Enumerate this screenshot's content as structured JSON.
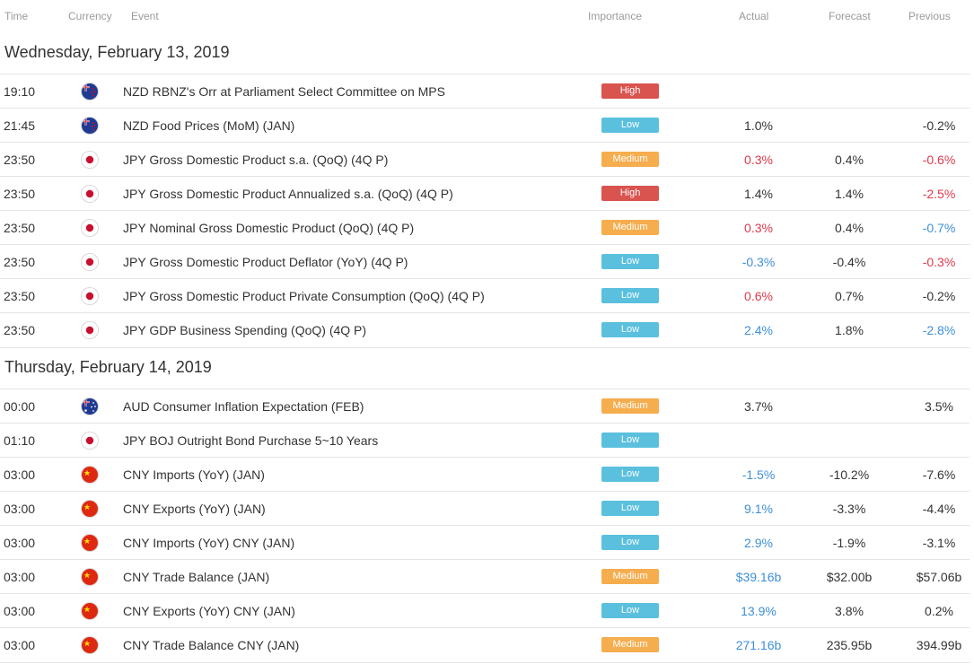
{
  "colors": {
    "high": "#d9534f",
    "medium": "#f5ad4e",
    "low": "#5bc0de",
    "positive": "#3e8fd8",
    "negative": "#e0394b"
  },
  "columns": {
    "time": "Time",
    "currency": "Currency",
    "event": "Event",
    "importance": "Importance",
    "actual": "Actual",
    "forecast": "Forecast",
    "previous": "Previous"
  },
  "days": [
    {
      "title": "Wednesday, February 13, 2019",
      "events": [
        {
          "time": "19:10",
          "flag": "nz-flag",
          "event": "NZD RBNZ's Orr at Parliament Select Committee on MPS",
          "importance": "High",
          "level": "high",
          "actual": "",
          "actual_color": "neu",
          "forecast": "",
          "previous": "",
          "previous_color": "neu"
        },
        {
          "time": "21:45",
          "flag": "nz-flag",
          "event": "NZD Food Prices (MoM) (JAN)",
          "importance": "Low",
          "level": "low",
          "actual": "1.0%",
          "actual_color": "neu",
          "forecast": "",
          "previous": "-0.2%",
          "previous_color": "neu"
        },
        {
          "time": "23:50",
          "flag": "jp-flag",
          "event": "JPY Gross Domestic Product s.a. (QoQ) (4Q P)",
          "importance": "Medium",
          "level": "medium",
          "actual": "0.3%",
          "actual_color": "neg",
          "forecast": "0.4%",
          "previous": "-0.6%",
          "previous_color": "neg"
        },
        {
          "time": "23:50",
          "flag": "jp-flag",
          "event": "JPY Gross Domestic Product Annualized s.a. (QoQ) (4Q P)",
          "importance": "High",
          "level": "high",
          "actual": "1.4%",
          "actual_color": "neu",
          "forecast": "1.4%",
          "previous": "-2.5%",
          "previous_color": "neg"
        },
        {
          "time": "23:50",
          "flag": "jp-flag",
          "event": "JPY Nominal Gross Domestic Product (QoQ) (4Q P)",
          "importance": "Medium",
          "level": "medium",
          "actual": "0.3%",
          "actual_color": "neg",
          "forecast": "0.4%",
          "previous": "-0.7%",
          "previous_color": "pos"
        },
        {
          "time": "23:50",
          "flag": "jp-flag",
          "event": "JPY Gross Domestic Product Deflator (YoY) (4Q P)",
          "importance": "Low",
          "level": "low",
          "actual": "-0.3%",
          "actual_color": "pos",
          "forecast": "-0.4%",
          "previous": "-0.3%",
          "previous_color": "neg"
        },
        {
          "time": "23:50",
          "flag": "jp-flag",
          "event": "JPY Gross Domestic Product Private Consumption (QoQ) (4Q P)",
          "importance": "Low",
          "level": "low",
          "actual": "0.6%",
          "actual_color": "neg",
          "forecast": "0.7%",
          "previous": "-0.2%",
          "previous_color": "neu"
        },
        {
          "time": "23:50",
          "flag": "jp-flag",
          "event": "JPY GDP Business Spending (QoQ) (4Q P)",
          "importance": "Low",
          "level": "low",
          "actual": "2.4%",
          "actual_color": "pos",
          "forecast": "1.8%",
          "previous": "-2.8%",
          "previous_color": "pos"
        }
      ]
    },
    {
      "title": "Thursday, February 14, 2019",
      "events": [
        {
          "time": "00:00",
          "flag": "au-flag",
          "event": "AUD Consumer Inflation Expectation (FEB)",
          "importance": "Medium",
          "level": "medium",
          "actual": "3.7%",
          "actual_color": "neu",
          "forecast": "",
          "previous": "3.5%",
          "previous_color": "neu"
        },
        {
          "time": "01:10",
          "flag": "jp-flag",
          "event": "JPY BOJ Outright Bond Purchase 5~10 Years",
          "importance": "Low",
          "level": "low",
          "actual": "",
          "actual_color": "neu",
          "forecast": "",
          "previous": "",
          "previous_color": "neu"
        },
        {
          "time": "03:00",
          "flag": "cn-flag",
          "event": "CNY Imports (YoY) (JAN)",
          "importance": "Low",
          "level": "low",
          "actual": "-1.5%",
          "actual_color": "pos",
          "forecast": "-10.2%",
          "previous": "-7.6%",
          "previous_color": "neu"
        },
        {
          "time": "03:00",
          "flag": "cn-flag",
          "event": "CNY Exports (YoY) (JAN)",
          "importance": "Low",
          "level": "low",
          "actual": "9.1%",
          "actual_color": "pos",
          "forecast": "-3.3%",
          "previous": "-4.4%",
          "previous_color": "neu"
        },
        {
          "time": "03:00",
          "flag": "cn-flag",
          "event": "CNY Imports (YoY) CNY (JAN)",
          "importance": "Low",
          "level": "low",
          "actual": "2.9%",
          "actual_color": "pos",
          "forecast": "-1.9%",
          "previous": "-3.1%",
          "previous_color": "neu"
        },
        {
          "time": "03:00",
          "flag": "cn-flag",
          "event": "CNY Trade Balance (JAN)",
          "importance": "Medium",
          "level": "medium",
          "actual": "$39.16b",
          "actual_color": "pos",
          "forecast": "$32.00b",
          "previous": "$57.06b",
          "previous_color": "neu"
        },
        {
          "time": "03:00",
          "flag": "cn-flag",
          "event": "CNY Exports (YoY) CNY (JAN)",
          "importance": "Low",
          "level": "low",
          "actual": "13.9%",
          "actual_color": "pos",
          "forecast": "3.8%",
          "previous": "0.2%",
          "previous_color": "neu"
        },
        {
          "time": "03:00",
          "flag": "cn-flag",
          "event": "CNY Trade Balance CNY (JAN)",
          "importance": "Medium",
          "level": "medium",
          "actual": "271.16b",
          "actual_color": "pos",
          "forecast": "235.95b",
          "previous": "394.99b",
          "previous_color": "neu"
        }
      ]
    }
  ]
}
